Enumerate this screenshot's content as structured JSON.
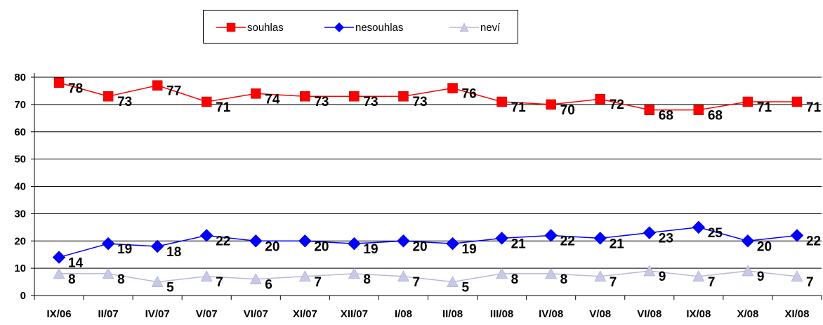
{
  "chart_data": {
    "type": "line",
    "categories": [
      "IX/06",
      "II/07",
      "IV/07",
      "V/07",
      "VI/07",
      "XI/07",
      "XII/07",
      "I/08",
      "II/08",
      "III/08",
      "IV/08",
      "V/08",
      "VI/08",
      "IX/08",
      "X/08",
      "XI/08"
    ],
    "series": [
      {
        "name": "souhlas",
        "color": "#ff0000",
        "marker": "square",
        "values": [
          78,
          73,
          77,
          71,
          74,
          73,
          73,
          73,
          76,
          71,
          70,
          72,
          68,
          68,
          71,
          71
        ]
      },
      {
        "name": "nesouhlas",
        "color": "#0000ff",
        "marker": "diamond",
        "values": [
          14,
          19,
          18,
          22,
          20,
          20,
          19,
          20,
          19,
          21,
          22,
          21,
          23,
          25,
          20,
          22
        ]
      },
      {
        "name": "neví",
        "color": "#b8b8d8",
        "marker": "triangle",
        "values": [
          8,
          8,
          5,
          7,
          6,
          7,
          8,
          7,
          5,
          8,
          8,
          7,
          9,
          7,
          9,
          7
        ]
      }
    ],
    "yticks": [
      "0",
      "10",
      "20",
      "30",
      "40",
      "50",
      "60",
      "70",
      "80"
    ],
    "ylim": [
      0,
      80
    ],
    "grid": true,
    "legend_position": "top"
  }
}
